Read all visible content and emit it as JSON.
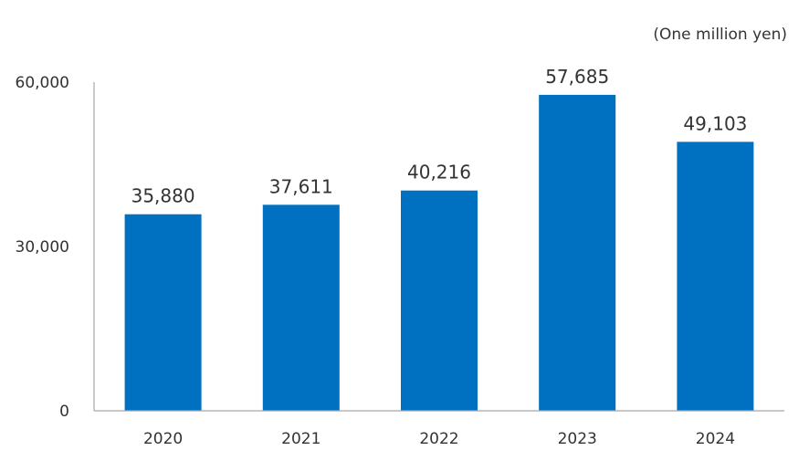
{
  "chart_data": {
    "type": "bar",
    "title": "",
    "unit_label": "(One million yen)",
    "xlabel": "",
    "ylabel": "",
    "categories": [
      "2020",
      "2021",
      "2022",
      "2023",
      "2024"
    ],
    "values": [
      35880,
      37611,
      40216,
      57685,
      49103
    ],
    "value_labels": [
      "35,880",
      "37,611",
      "40,216",
      "57,685",
      "49,103"
    ],
    "ylim": [
      0,
      60000
    ],
    "y_ticks": [
      0,
      30000,
      60000
    ],
    "y_tick_labels": [
      "0",
      "30,000",
      "60,000"
    ],
    "grid": false,
    "legend": "none",
    "bar_color": "#0070C0",
    "axis_color": "#A6A6A6",
    "text_color": "#333333"
  }
}
